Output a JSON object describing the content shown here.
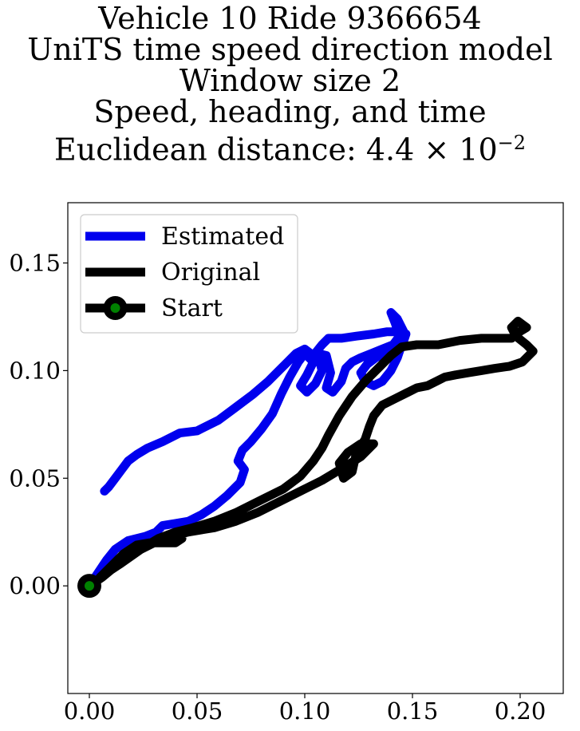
{
  "chart_data": {
    "type": "line",
    "title_lines": [
      "Vehicle 10 Ride 9366654",
      "UniTS time speed direction model",
      "Window size 2",
      "Speed, heading, and time"
    ],
    "title_metric_prefix": "Euclidean distance: 4.4 × 10",
    "title_metric_exponent": "−2",
    "xlim": [
      -0.01,
      0.22
    ],
    "ylim": [
      -0.05,
      0.178
    ],
    "xticks": [
      0.0,
      0.05,
      0.1,
      0.15,
      0.2
    ],
    "xtick_labels": [
      "0.00",
      "0.05",
      "0.10",
      "0.15",
      "0.20"
    ],
    "yticks": [
      0.0,
      0.05,
      0.1,
      0.15
    ],
    "ytick_labels": [
      "0.00",
      "0.05",
      "0.10",
      "0.15"
    ],
    "legend_position": "top-left",
    "series": [
      {
        "name": "Estimated",
        "color": "#0000ee",
        "points": [
          [
            0.0,
            0.0
          ],
          [
            0.004,
            0.006
          ],
          [
            0.008,
            0.012
          ],
          [
            0.012,
            0.017
          ],
          [
            0.018,
            0.021
          ],
          [
            0.026,
            0.023
          ],
          [
            0.031,
            0.025
          ],
          [
            0.034,
            0.028
          ],
          [
            0.04,
            0.029
          ],
          [
            0.046,
            0.03
          ],
          [
            0.052,
            0.033
          ],
          [
            0.058,
            0.037
          ],
          [
            0.064,
            0.042
          ],
          [
            0.07,
            0.048
          ],
          [
            0.072,
            0.054
          ],
          [
            0.069,
            0.058
          ],
          [
            0.071,
            0.063
          ],
          [
            0.075,
            0.067
          ],
          [
            0.08,
            0.073
          ],
          [
            0.085,
            0.08
          ],
          [
            0.089,
            0.089
          ],
          [
            0.093,
            0.097
          ],
          [
            0.097,
            0.104
          ],
          [
            0.1,
            0.108
          ],
          [
            0.104,
            0.104
          ],
          [
            0.101,
            0.098
          ],
          [
            0.098,
            0.093
          ],
          [
            0.101,
            0.09
          ],
          [
            0.105,
            0.094
          ],
          [
            0.108,
            0.1
          ],
          [
            0.106,
            0.108
          ],
          [
            0.11,
            0.107
          ],
          [
            0.112,
            0.099
          ],
          [
            0.11,
            0.092
          ],
          [
            0.113,
            0.09
          ],
          [
            0.117,
            0.095
          ],
          [
            0.119,
            0.101
          ],
          [
            0.122,
            0.104
          ],
          [
            0.126,
            0.106
          ],
          [
            0.131,
            0.108
          ],
          [
            0.136,
            0.11
          ],
          [
            0.141,
            0.112
          ],
          [
            0.144,
            0.116
          ],
          [
            0.142,
            0.122
          ],
          [
            0.14,
            0.127
          ],
          [
            0.143,
            0.124
          ],
          [
            0.146,
            0.118
          ],
          [
            0.145,
            0.112
          ],
          [
            0.143,
            0.106
          ],
          [
            0.14,
            0.1
          ],
          [
            0.136,
            0.095
          ],
          [
            0.132,
            0.093
          ],
          [
            0.128,
            0.095
          ],
          [
            0.126,
            0.099
          ],
          [
            0.129,
            0.103
          ],
          [
            0.133,
            0.106
          ],
          [
            0.138,
            0.108
          ],
          [
            0.143,
            0.11
          ],
          [
            0.146,
            0.114
          ],
          [
            0.147,
            0.117
          ],
          [
            0.143,
            0.118
          ],
          [
            0.138,
            0.118
          ],
          [
            0.132,
            0.117
          ],
          [
            0.124,
            0.116
          ],
          [
            0.117,
            0.115
          ],
          [
            0.111,
            0.115
          ],
          [
            0.108,
            0.112
          ],
          [
            0.104,
            0.107
          ],
          [
            0.1,
            0.11
          ],
          [
            0.096,
            0.108
          ],
          [
            0.092,
            0.104
          ],
          [
            0.088,
            0.1
          ],
          [
            0.083,
            0.095
          ],
          [
            0.076,
            0.089
          ],
          [
            0.068,
            0.083
          ],
          [
            0.06,
            0.077
          ],
          [
            0.05,
            0.072
          ],
          [
            0.042,
            0.071
          ],
          [
            0.034,
            0.067
          ],
          [
            0.027,
            0.064
          ],
          [
            0.022,
            0.061
          ],
          [
            0.018,
            0.058
          ],
          [
            0.015,
            0.054
          ],
          [
            0.012,
            0.05
          ],
          [
            0.009,
            0.046
          ],
          [
            0.007,
            0.044
          ]
        ]
      },
      {
        "name": "Original",
        "color": "#000000",
        "points": [
          [
            0.0,
            0.0
          ],
          [
            0.006,
            0.004
          ],
          [
            0.012,
            0.009
          ],
          [
            0.018,
            0.014
          ],
          [
            0.024,
            0.018
          ],
          [
            0.031,
            0.021
          ],
          [
            0.038,
            0.022
          ],
          [
            0.043,
            0.022
          ],
          [
            0.04,
            0.02
          ],
          [
            0.034,
            0.02
          ],
          [
            0.028,
            0.02
          ],
          [
            0.022,
            0.019
          ],
          [
            0.016,
            0.015
          ],
          [
            0.01,
            0.009
          ],
          [
            0.005,
            0.004
          ],
          [
            0.014,
            0.01
          ],
          [
            0.024,
            0.017
          ],
          [
            0.034,
            0.022
          ],
          [
            0.046,
            0.025
          ],
          [
            0.058,
            0.027
          ],
          [
            0.068,
            0.03
          ],
          [
            0.078,
            0.034
          ],
          [
            0.088,
            0.039
          ],
          [
            0.098,
            0.044
          ],
          [
            0.108,
            0.049
          ],
          [
            0.118,
            0.055
          ],
          [
            0.126,
            0.06
          ],
          [
            0.132,
            0.066
          ],
          [
            0.126,
            0.066
          ],
          [
            0.12,
            0.062
          ],
          [
            0.116,
            0.057
          ],
          [
            0.118,
            0.05
          ],
          [
            0.122,
            0.053
          ],
          [
            0.124,
            0.062
          ],
          [
            0.128,
            0.068
          ],
          [
            0.13,
            0.074
          ],
          [
            0.132,
            0.079
          ],
          [
            0.136,
            0.084
          ],
          [
            0.142,
            0.087
          ],
          [
            0.148,
            0.09
          ],
          [
            0.152,
            0.092
          ],
          [
            0.157,
            0.093
          ],
          [
            0.161,
            0.095
          ],
          [
            0.165,
            0.097
          ],
          [
            0.17,
            0.098
          ],
          [
            0.176,
            0.099
          ],
          [
            0.182,
            0.1
          ],
          [
            0.188,
            0.101
          ],
          [
            0.195,
            0.102
          ],
          [
            0.201,
            0.104
          ],
          [
            0.206,
            0.109
          ],
          [
            0.203,
            0.112
          ],
          [
            0.198,
            0.116
          ],
          [
            0.196,
            0.12
          ],
          [
            0.199,
            0.123
          ],
          [
            0.203,
            0.12
          ],
          [
            0.198,
            0.117
          ],
          [
            0.196,
            0.115
          ],
          [
            0.19,
            0.115
          ],
          [
            0.182,
            0.115
          ],
          [
            0.172,
            0.114
          ],
          [
            0.162,
            0.112
          ],
          [
            0.152,
            0.112
          ],
          [
            0.145,
            0.111
          ],
          [
            0.14,
            0.107
          ],
          [
            0.134,
            0.101
          ],
          [
            0.128,
            0.095
          ],
          [
            0.122,
            0.088
          ],
          [
            0.116,
            0.079
          ],
          [
            0.111,
            0.07
          ],
          [
            0.108,
            0.064
          ],
          [
            0.104,
            0.058
          ],
          [
            0.098,
            0.051
          ],
          [
            0.09,
            0.045
          ],
          [
            0.08,
            0.04
          ],
          [
            0.068,
            0.034
          ],
          [
            0.058,
            0.03
          ],
          [
            0.048,
            0.027
          ],
          [
            0.04,
            0.025
          ],
          [
            0.032,
            0.022
          ],
          [
            0.022,
            0.016
          ],
          [
            0.012,
            0.009
          ],
          [
            0.004,
            0.003
          ],
          [
            0.0,
            0.0
          ]
        ]
      }
    ],
    "start_marker": {
      "name": "Start",
      "point": [
        0.0,
        0.0
      ],
      "fill": "#008000",
      "ring": "#000000"
    }
  }
}
